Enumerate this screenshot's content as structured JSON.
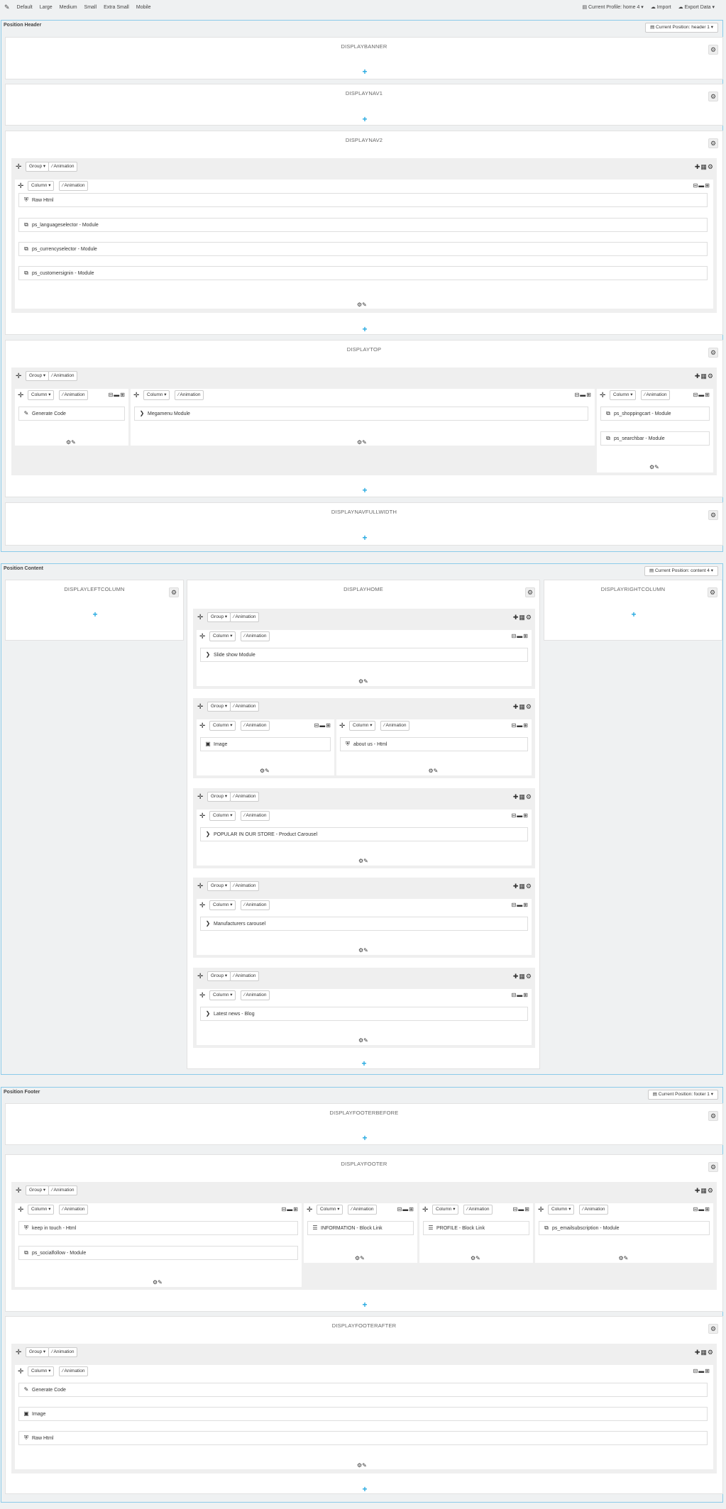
{
  "toolbar": {
    "items": [
      "Default",
      "Large",
      "Medium",
      "Small",
      "Extra Small",
      "Mobile"
    ],
    "profile": "Current Profile: home 4",
    "import": "Import",
    "export": "Export Data"
  },
  "labels": {
    "group": "Group",
    "column": "Column",
    "animation": "Animation"
  },
  "header": {
    "title": "Position Header",
    "current": "Current Position: header 1",
    "hooks": {
      "banner": "DISPLAYBANNER",
      "nav1": "DISPLAYNAV1",
      "nav2": "DISPLAYNAV2",
      "top": "DISPLAYTOP",
      "navfull": "DISPLAYNAVFULLWIDTH"
    },
    "nav2_modules": [
      "Raw Html",
      "ps_languageselector - Module",
      "ps_currencyselector - Module",
      "ps_customersignin - Module"
    ],
    "top_modules": {
      "c1": [
        "Generate Code"
      ],
      "c2": [
        "Megamenu Module"
      ],
      "c3": [
        "ps_shoppingcart - Module",
        "ps_searchbar - Module"
      ]
    }
  },
  "content": {
    "title": "Position Content",
    "current": "Current Position: content 4",
    "hooks": {
      "left": "DISPLAYLEFTCOLUMN",
      "home": "DISPLAYHOME",
      "right": "DISPLAYRIGHTCOLUMN"
    },
    "home_modules": {
      "g1": "Slide show Module",
      "g2a": "Image",
      "g2b": "about us - Html",
      "g3": "POPULAR IN OUR STORE - Product Carousel",
      "g4": "Manufacturers carousel",
      "g5": "Latest news - Blog"
    }
  },
  "footer": {
    "title": "Position Footer",
    "current": "Current Position: footer 1",
    "hooks": {
      "before": "DISPLAYFOOTERBEFORE",
      "footer": "DISPLAYFOOTER",
      "after": "DISPLAYFOOTERAFTER"
    },
    "footer_modules": {
      "c1": [
        "keep in touch - Html",
        "ps_socialfollow - Module"
      ],
      "c2": [
        "INFORMATION - Block Link"
      ],
      "c3": [
        "PROFILE - Block Link"
      ],
      "c4": [
        "ps_emailsubscription - Module"
      ]
    },
    "after_modules": [
      "Generate Code",
      "Image",
      "Raw Html"
    ]
  },
  "icons": {
    "gear": "gear-icon",
    "add": "plus-icon",
    "move": "move-icon",
    "edit": "pencil-icon",
    "html": "html5-icon",
    "module": "copy-icon",
    "chevron": "chevron-right-icon",
    "image": "image-icon",
    "list": "list-icon",
    "code": "edit-square-icon"
  }
}
